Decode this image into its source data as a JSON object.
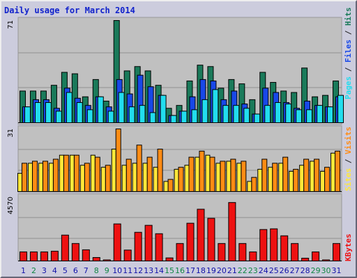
{
  "title": "Daily usage for March 2014",
  "colors": {
    "hits": "#1a7a5a",
    "files": "#1848e8",
    "pages": "#22ddee",
    "visits": "#ff8c14",
    "sites": "#ffe83a",
    "kbytes": "#ee1111",
    "day_weekday": "#1111aa",
    "day_weekend": "#118844",
    "slash": "#222222"
  },
  "chart_data": [
    {
      "type": "bar",
      "panel": "hits-files-pages",
      "categories": [
        "1",
        "2",
        "3",
        "4",
        "5",
        "6",
        "7",
        "8",
        "9",
        "10",
        "11",
        "12",
        "13",
        "14",
        "15",
        "16",
        "17",
        "18",
        "19",
        "20",
        "21",
        "22",
        "23",
        "24",
        "25",
        "26",
        "27",
        "28",
        "29",
        "30",
        "31"
      ],
      "weekend_days": [
        "2",
        "8",
        "9",
        "15",
        "16",
        "22",
        "23",
        "29",
        "30"
      ],
      "ylim": [
        0,
        71
      ],
      "y_tick_label": "71",
      "series_legend": [
        "Pages",
        "Files",
        "Hits"
      ],
      "series": [
        {
          "name": "Hits",
          "values": [
            22,
            22,
            22,
            26,
            35,
            34,
            18,
            30,
            15,
            71,
            36,
            39,
            36,
            26,
            10,
            12,
            29,
            40,
            39,
            24,
            30,
            27,
            16,
            35,
            28,
            22,
            21,
            38,
            18,
            19,
            29
          ]
        },
        {
          "name": "Files",
          "values": [
            11,
            16,
            16,
            10,
            24,
            17,
            12,
            18,
            11,
            30,
            20,
            33,
            25,
            19,
            5,
            8,
            18,
            30,
            29,
            16,
            22,
            13,
            6,
            24,
            21,
            14,
            10,
            15,
            12,
            11,
            18
          ]
        },
        {
          "name": "Pages",
          "values": [
            11,
            14,
            14,
            8,
            21,
            14,
            9,
            18,
            8,
            21,
            11,
            12,
            7,
            19,
            5,
            8,
            9,
            16,
            23,
            12,
            12,
            10,
            6,
            12,
            14,
            13,
            9,
            9,
            12,
            11,
            19
          ]
        }
      ]
    },
    {
      "type": "bar",
      "panel": "visits-sites",
      "categories": [
        "1",
        "2",
        "3",
        "4",
        "5",
        "6",
        "7",
        "8",
        "9",
        "10",
        "11",
        "12",
        "13",
        "14",
        "15",
        "16",
        "17",
        "18",
        "19",
        "20",
        "21",
        "22",
        "23",
        "24",
        "25",
        "26",
        "27",
        "28",
        "29",
        "30",
        "31"
      ],
      "ylim": [
        0,
        31
      ],
      "y_tick_label": "31",
      "series_legend": [
        "Sites",
        "Visits"
      ],
      "series": [
        {
          "name": "Visits",
          "values": [
            14,
            15,
            15,
            16,
            18,
            18,
            14,
            17,
            13,
            31,
            16,
            23,
            17,
            21,
            6,
            12,
            17,
            20,
            17,
            15,
            16,
            15,
            7,
            16,
            14,
            17,
            11,
            16,
            16,
            12,
            20
          ]
        },
        {
          "name": "Sites",
          "values": [
            9,
            14,
            14,
            14,
            18,
            18,
            13,
            18,
            12,
            21,
            13,
            14,
            14,
            12,
            5,
            11,
            13,
            17,
            18,
            14,
            15,
            14,
            5,
            11,
            12,
            14,
            10,
            13,
            15,
            10,
            19
          ]
        }
      ]
    },
    {
      "type": "bar",
      "panel": "kbytes",
      "categories": [
        "1",
        "2",
        "3",
        "4",
        "5",
        "6",
        "7",
        "8",
        "9",
        "10",
        "11",
        "12",
        "13",
        "14",
        "15",
        "16",
        "17",
        "18",
        "19",
        "20",
        "21",
        "22",
        "23",
        "24",
        "25",
        "26",
        "27",
        "28",
        "29",
        "30",
        "31"
      ],
      "ylim": [
        0,
        4570
      ],
      "y_tick_label": "4570",
      "series_legend": [
        "KBytes"
      ],
      "series": [
        {
          "name": "KBytes",
          "values": [
            650,
            650,
            650,
            700,
            1850,
            1250,
            800,
            250,
            80,
            2650,
            780,
            2050,
            2550,
            1950,
            220,
            1250,
            2700,
            3700,
            3050,
            1250,
            4180,
            1250,
            650,
            2250,
            2300,
            1800,
            1250,
            200,
            650,
            80,
            1250
          ]
        }
      ]
    }
  ]
}
